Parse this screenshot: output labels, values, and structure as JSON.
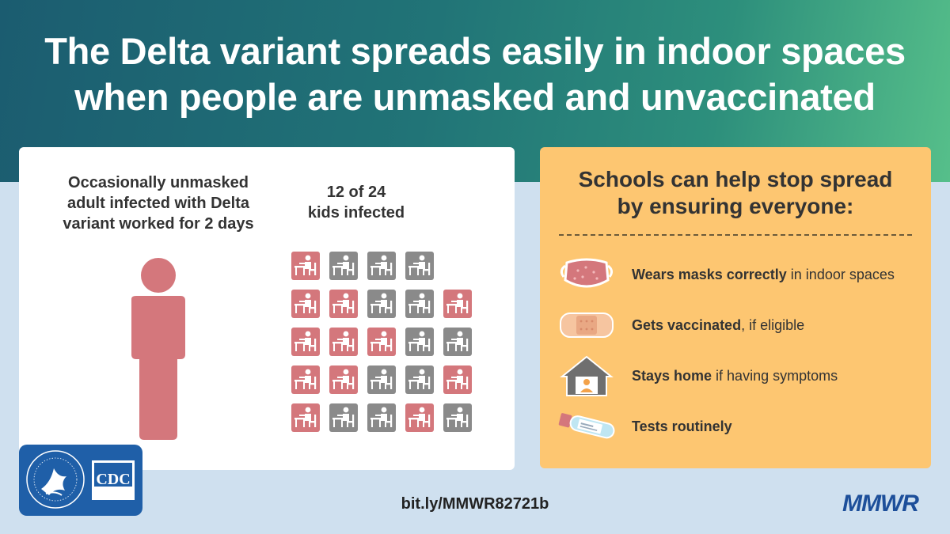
{
  "header": {
    "title_line1": "The Delta variant spreads easily in indoor spaces",
    "title_line2": "when people are unmasked and unvaccinated"
  },
  "left_panel": {
    "adult_text_line1": "Occasionally unmasked",
    "adult_text_line2": "adult infected with Delta",
    "adult_text_line3": "variant worked for 2 days",
    "kids_text_line1": "12 of 24",
    "kids_text_line2": "kids infected",
    "person_icon": "person-icon",
    "kid_rows": [
      [
        "infected",
        "not",
        "not",
        "not",
        "empty"
      ],
      [
        "infected",
        "infected",
        "not",
        "not",
        "infected"
      ],
      [
        "infected",
        "infected",
        "infected",
        "not",
        "not"
      ],
      [
        "infected",
        "infected",
        "not",
        "not",
        "infected"
      ],
      [
        "infected",
        "not",
        "not",
        "infected",
        "not"
      ]
    ],
    "colors": {
      "infected": "#d4777c",
      "not": "#8a8a8a"
    }
  },
  "right_panel": {
    "title_line1": "Schools can help stop spread",
    "title_line2": "by ensuring everyone:",
    "tips": [
      {
        "icon": "mask-icon",
        "bold": "Wears masks correctly",
        "rest": " in indoor spaces"
      },
      {
        "icon": "bandage-icon",
        "bold": "Gets vaccinated",
        "rest": ", if eligible"
      },
      {
        "icon": "house-icon",
        "bold": "Stays home",
        "rest": " if having symptoms"
      },
      {
        "icon": "test-tube-icon",
        "bold": "Tests routinely",
        "rest": ""
      }
    ]
  },
  "footer": {
    "cdc_label": "CDC",
    "url": "bit.ly/MMWR82721b",
    "mmwr": "MMWR"
  }
}
